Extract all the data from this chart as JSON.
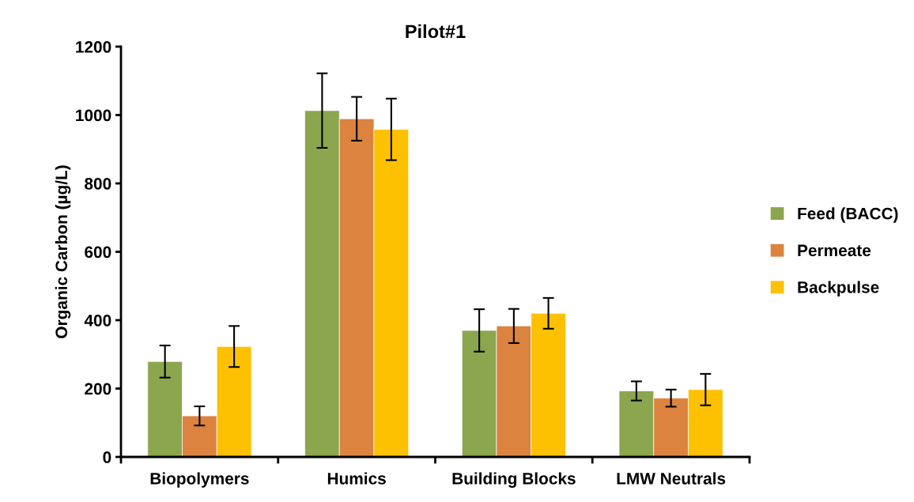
{
  "chart_data": {
    "type": "bar",
    "title": "Pilot#1",
    "ylabel": "Organic Carbon (µg/L)",
    "categories": [
      "Biopolymers",
      "Humics",
      "Building Blocks",
      "LMW Neutrals"
    ],
    "series": [
      {
        "name": "Feed (BACC)",
        "color": "#8ba64e",
        "values": [
          279,
          1013,
          370,
          193
        ],
        "errors": [
          47,
          109,
          62,
          28
        ]
      },
      {
        "name": "Permeate",
        "color": "#db833f",
        "values": [
          120,
          989,
          383,
          172
        ],
        "errors": [
          28,
          64,
          50,
          25
        ]
      },
      {
        "name": "Backpulse",
        "color": "#fdc101",
        "values": [
          323,
          958,
          420,
          197
        ],
        "errors": [
          60,
          90,
          45,
          46
        ]
      }
    ],
    "ylim": [
      0,
      1200
    ],
    "yticks": [
      0,
      200,
      400,
      600,
      800,
      1000,
      1200
    ],
    "grid": false,
    "legend": "right"
  }
}
